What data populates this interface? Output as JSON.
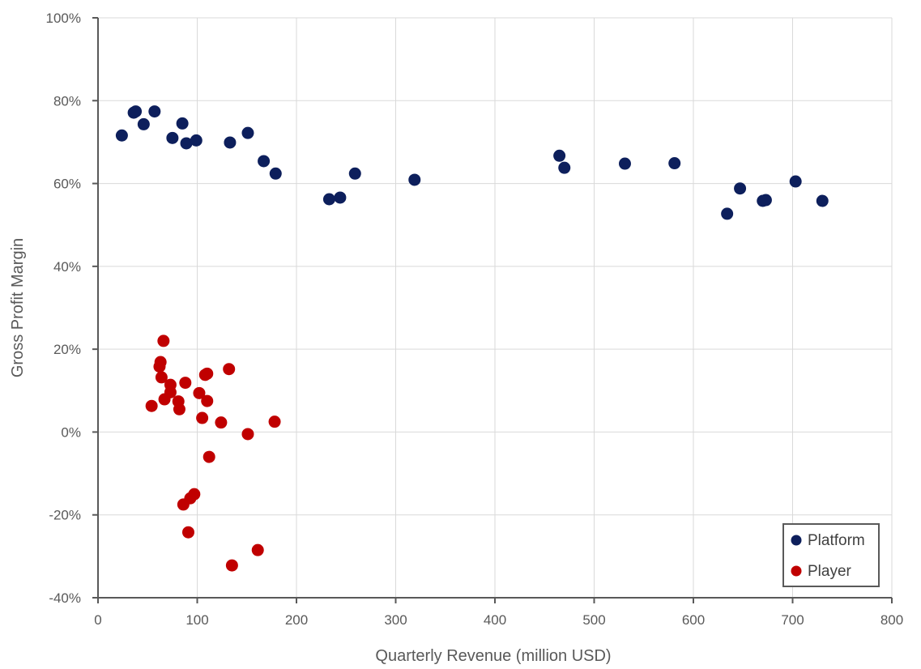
{
  "chart_data": {
    "type": "scatter",
    "xlabel": "Quarterly Revenue (million USD)",
    "ylabel": "Gross Profit Margin",
    "xlim": [
      0,
      800
    ],
    "ylim": [
      -40,
      100
    ],
    "x_ticks": [
      "0",
      "100",
      "200",
      "300",
      "400",
      "500",
      "600",
      "700",
      "800"
    ],
    "y_ticks": [
      "-40%",
      "-20%",
      "0%",
      "20%",
      "40%",
      "60%",
      "80%",
      "100%"
    ],
    "grid": true,
    "legend_position": "bottom-right",
    "series": [
      {
        "name": "Platform",
        "color": "#0d1f5c",
        "points": [
          [
            24,
            71.6
          ],
          [
            36,
            77.1
          ],
          [
            38,
            77.4
          ],
          [
            46,
            74.3
          ],
          [
            57,
            77.4
          ],
          [
            75,
            71.0
          ],
          [
            85,
            74.5
          ],
          [
            89,
            69.7
          ],
          [
            99,
            70.4
          ],
          [
            133,
            69.9
          ],
          [
            151,
            72.2
          ],
          [
            167,
            65.4
          ],
          [
            179,
            62.4
          ],
          [
            233,
            56.2
          ],
          [
            244,
            56.6
          ],
          [
            259,
            62.4
          ],
          [
            319,
            60.9
          ],
          [
            465,
            66.7
          ],
          [
            470,
            63.8
          ],
          [
            531,
            64.8
          ],
          [
            581,
            64.9
          ],
          [
            634,
            52.7
          ],
          [
            647,
            58.8
          ],
          [
            670,
            55.8
          ],
          [
            673,
            56.0
          ],
          [
            703,
            60.5
          ],
          [
            730,
            55.8
          ]
        ]
      },
      {
        "name": "Player",
        "color": "#c00000",
        "points": [
          [
            54,
            6.3
          ],
          [
            62,
            15.8
          ],
          [
            63,
            16.9
          ],
          [
            64,
            13.2
          ],
          [
            66,
            22.0
          ],
          [
            67,
            7.9
          ],
          [
            73,
            9.6
          ],
          [
            73,
            11.4
          ],
          [
            81,
            7.4
          ],
          [
            82,
            5.5
          ],
          [
            86,
            -17.5
          ],
          [
            88,
            11.9
          ],
          [
            91,
            -24.2
          ],
          [
            93,
            -16.0
          ],
          [
            97,
            -15.0
          ],
          [
            102,
            9.4
          ],
          [
            105,
            3.4
          ],
          [
            108,
            13.8
          ],
          [
            110,
            14.1
          ],
          [
            110,
            7.5
          ],
          [
            112,
            -6.0
          ],
          [
            124,
            2.3
          ],
          [
            132,
            15.2
          ],
          [
            135,
            -32.2
          ],
          [
            151,
            -0.5
          ],
          [
            161,
            -28.5
          ],
          [
            178,
            2.5
          ]
        ]
      }
    ]
  }
}
